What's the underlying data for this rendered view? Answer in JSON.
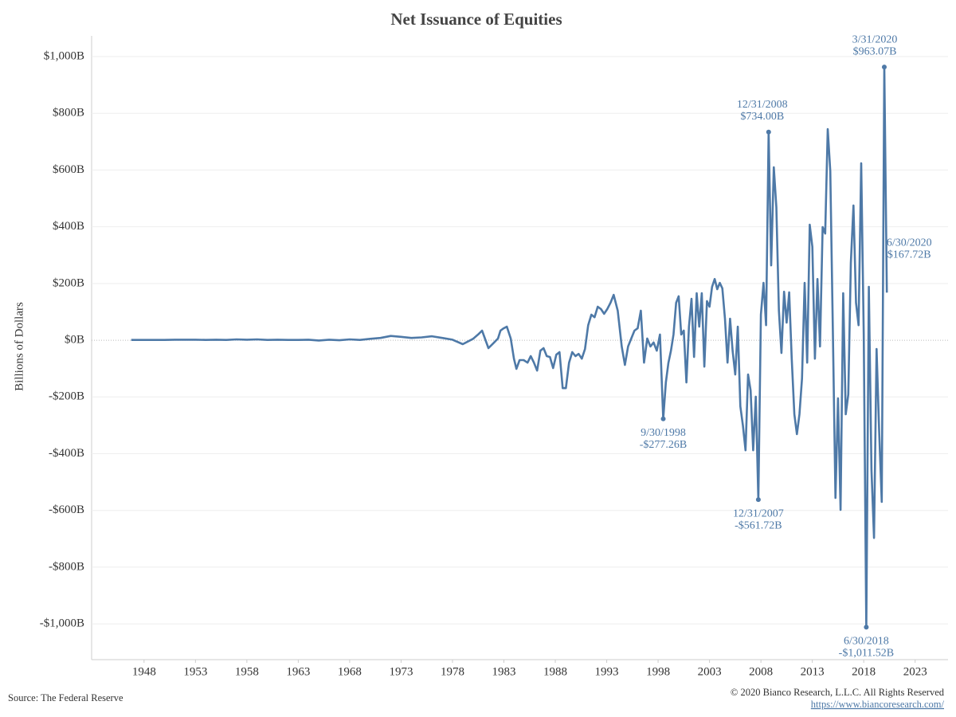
{
  "chart_data": {
    "type": "line",
    "title": "Net Issuance of Equities",
    "y_label": "Billions of Dollars",
    "color": "#4e79a7",
    "grid": true,
    "xlim": [
      1942.9,
      2026.2
    ],
    "xticks": [
      1948,
      1953,
      1958,
      1963,
      1968,
      1973,
      1978,
      1983,
      1988,
      1993,
      1998,
      2003,
      2008,
      2013,
      2018,
      2023
    ],
    "ylim": [
      -1126,
      1073
    ],
    "yticks": [
      {
        "value": -1000,
        "label": "-$1,000B"
      },
      {
        "value": -800,
        "label": "-$800B"
      },
      {
        "value": -600,
        "label": "-$600B"
      },
      {
        "value": -400,
        "label": "-$400B"
      },
      {
        "value": -200,
        "label": "-$200B"
      },
      {
        "value": 0,
        "label": "$0B"
      },
      {
        "value": 200,
        "label": "$200B"
      },
      {
        "value": 400,
        "label": "$400B"
      },
      {
        "value": 600,
        "label": "$600B"
      },
      {
        "value": 800,
        "label": "$800B"
      },
      {
        "value": 1000,
        "label": "$1,000B"
      }
    ],
    "x": [
      1946.75,
      1948,
      1949,
      1950,
      1951,
      1952,
      1953,
      1954,
      1955,
      1956,
      1957,
      1958,
      1959,
      1960,
      1961,
      1962,
      1963,
      1964,
      1965,
      1966,
      1967,
      1968,
      1969,
      1970,
      1971,
      1972,
      1973,
      1974,
      1975,
      1976,
      1977,
      1978,
      1979,
      1980,
      1980.49,
      1980.88,
      1981.5,
      1982.05,
      1982.43,
      1982.67,
      1982.98,
      1983.29,
      1983.67,
      1983.98,
      1984.22,
      1984.53,
      1984.92,
      1985.3,
      1985.61,
      1985.92,
      1986.23,
      1986.55,
      1986.86,
      1987.17,
      1987.48,
      1987.79,
      1988.1,
      1988.41,
      1988.72,
      1989.03,
      1989.34,
      1989.65,
      1989.96,
      1990.27,
      1990.58,
      1990.89,
      1991.2,
      1991.51,
      1991.82,
      1992.13,
      1992.44,
      1992.75,
      1993.06,
      1993.37,
      1993.68,
      1994.07,
      1994.46,
      1994.77,
      1995.08,
      1995.39,
      1995.7,
      1996.01,
      1996.32,
      1996.63,
      1996.94,
      1997.25,
      1997.56,
      1997.87,
      1998.18,
      1998.5,
      1998.75,
      1999,
      1999.25,
      1999.5,
      1999.75,
      2000,
      2000.25,
      2000.5,
      2000.75,
      2001,
      2001.25,
      2001.5,
      2001.75,
      2002,
      2002.25,
      2002.5,
      2002.75,
      2003,
      2003.25,
      2003.5,
      2003.75,
      2004,
      2004.25,
      2004.5,
      2004.75,
      2005,
      2005.25,
      2005.5,
      2005.75,
      2006,
      2006.25,
      2006.5,
      2006.75,
      2007,
      2007.25,
      2007.5,
      2007.75,
      2008,
      2008.25,
      2008.5,
      2008.75,
      2009,
      2009.25,
      2009.5,
      2009.75,
      2010,
      2010.25,
      2010.5,
      2010.75,
      2011,
      2011.25,
      2011.5,
      2011.75,
      2012,
      2012.25,
      2012.5,
      2012.75,
      2013,
      2013.25,
      2013.5,
      2013.75,
      2014,
      2014.25,
      2014.5,
      2014.75,
      2015,
      2015.25,
      2015.5,
      2015.75,
      2016,
      2016.25,
      2016.5,
      2016.75,
      2017,
      2017.25,
      2017.5,
      2017.75,
      2018,
      2018.25,
      2018.5,
      2018.75,
      2019,
      2019.25,
      2019.5,
      2019.75,
      2020,
      2020.25
    ],
    "values": [
      1,
      1,
      1,
      1,
      2,
      2,
      2,
      1,
      2,
      1,
      3,
      2,
      3,
      1,
      2,
      1,
      1,
      2,
      -1,
      2,
      0,
      3,
      1,
      5,
      8,
      15,
      12,
      8,
      10,
      14,
      8,
      2,
      -14,
      5,
      20,
      34,
      -28,
      -8,
      6,
      34,
      42,
      48,
      6,
      -65,
      -101,
      -70,
      -70,
      -79,
      -56,
      -79,
      -107,
      -37,
      -28,
      -56,
      -59,
      -98,
      -51,
      -42,
      -169,
      -169,
      -79,
      -42,
      -56,
      -48,
      -65,
      -31,
      53,
      90,
      81,
      118,
      110,
      93,
      110,
      132,
      160,
      104,
      -22,
      -87,
      -22,
      6,
      34,
      42,
      104,
      -79,
      6,
      -22,
      -8,
      -37,
      20,
      -277.26,
      -149,
      -80,
      -37,
      20,
      132,
      155,
      20,
      34,
      -149,
      48,
      146,
      -59,
      166,
      48,
      166,
      -93,
      138,
      118,
      188,
      216,
      180,
      202,
      183,
      76,
      -79,
      76,
      -37,
      -121,
      48,
      -233,
      -300,
      -388,
      -121,
      -177,
      -388,
      -199,
      -561.72,
      90,
      202,
      53,
      734.0,
      264,
      610,
      469,
      104,
      -45,
      171,
      62,
      169,
      -65,
      -261,
      -331,
      -261,
      -135,
      202,
      -79,
      407,
      329,
      -65,
      216,
      -22,
      399,
      376,
      744,
      596,
      20,
      -556,
      -205,
      -598,
      166,
      -261,
      -191,
      272,
      475,
      132,
      53,
      624,
      20,
      -1011.52,
      188,
      -458,
      -697,
      -31,
      -317,
      -570,
      963.07,
      167.72
    ],
    "annotations": [
      {
        "date": "9/30/1998",
        "label": "-$277.26B",
        "x": 1998.5,
        "value": -277.26
      },
      {
        "date": "12/31/2007",
        "label": "-$561.72B",
        "x": 2007.75,
        "value": -561.72
      },
      {
        "date": "12/31/2008",
        "label": "$734.00B",
        "x": 2008.75,
        "value": 734.0
      },
      {
        "date": "6/30/2018",
        "label": "-$1,011.52B",
        "x": 2018.25,
        "value": -1011.52
      },
      {
        "date": "3/31/2020",
        "label": "$963.07B",
        "x": 2020,
        "value": 963.07
      },
      {
        "date": "6/30/2020",
        "label": "$167.72B",
        "x": 2020.25,
        "value": 167.72
      }
    ],
    "source": "Source: The Federal Reserve",
    "copyright": "© 2020 Bianco Research, L.L.C. All Rights Reserved",
    "url": "https://www.biancoresearch.com/"
  }
}
